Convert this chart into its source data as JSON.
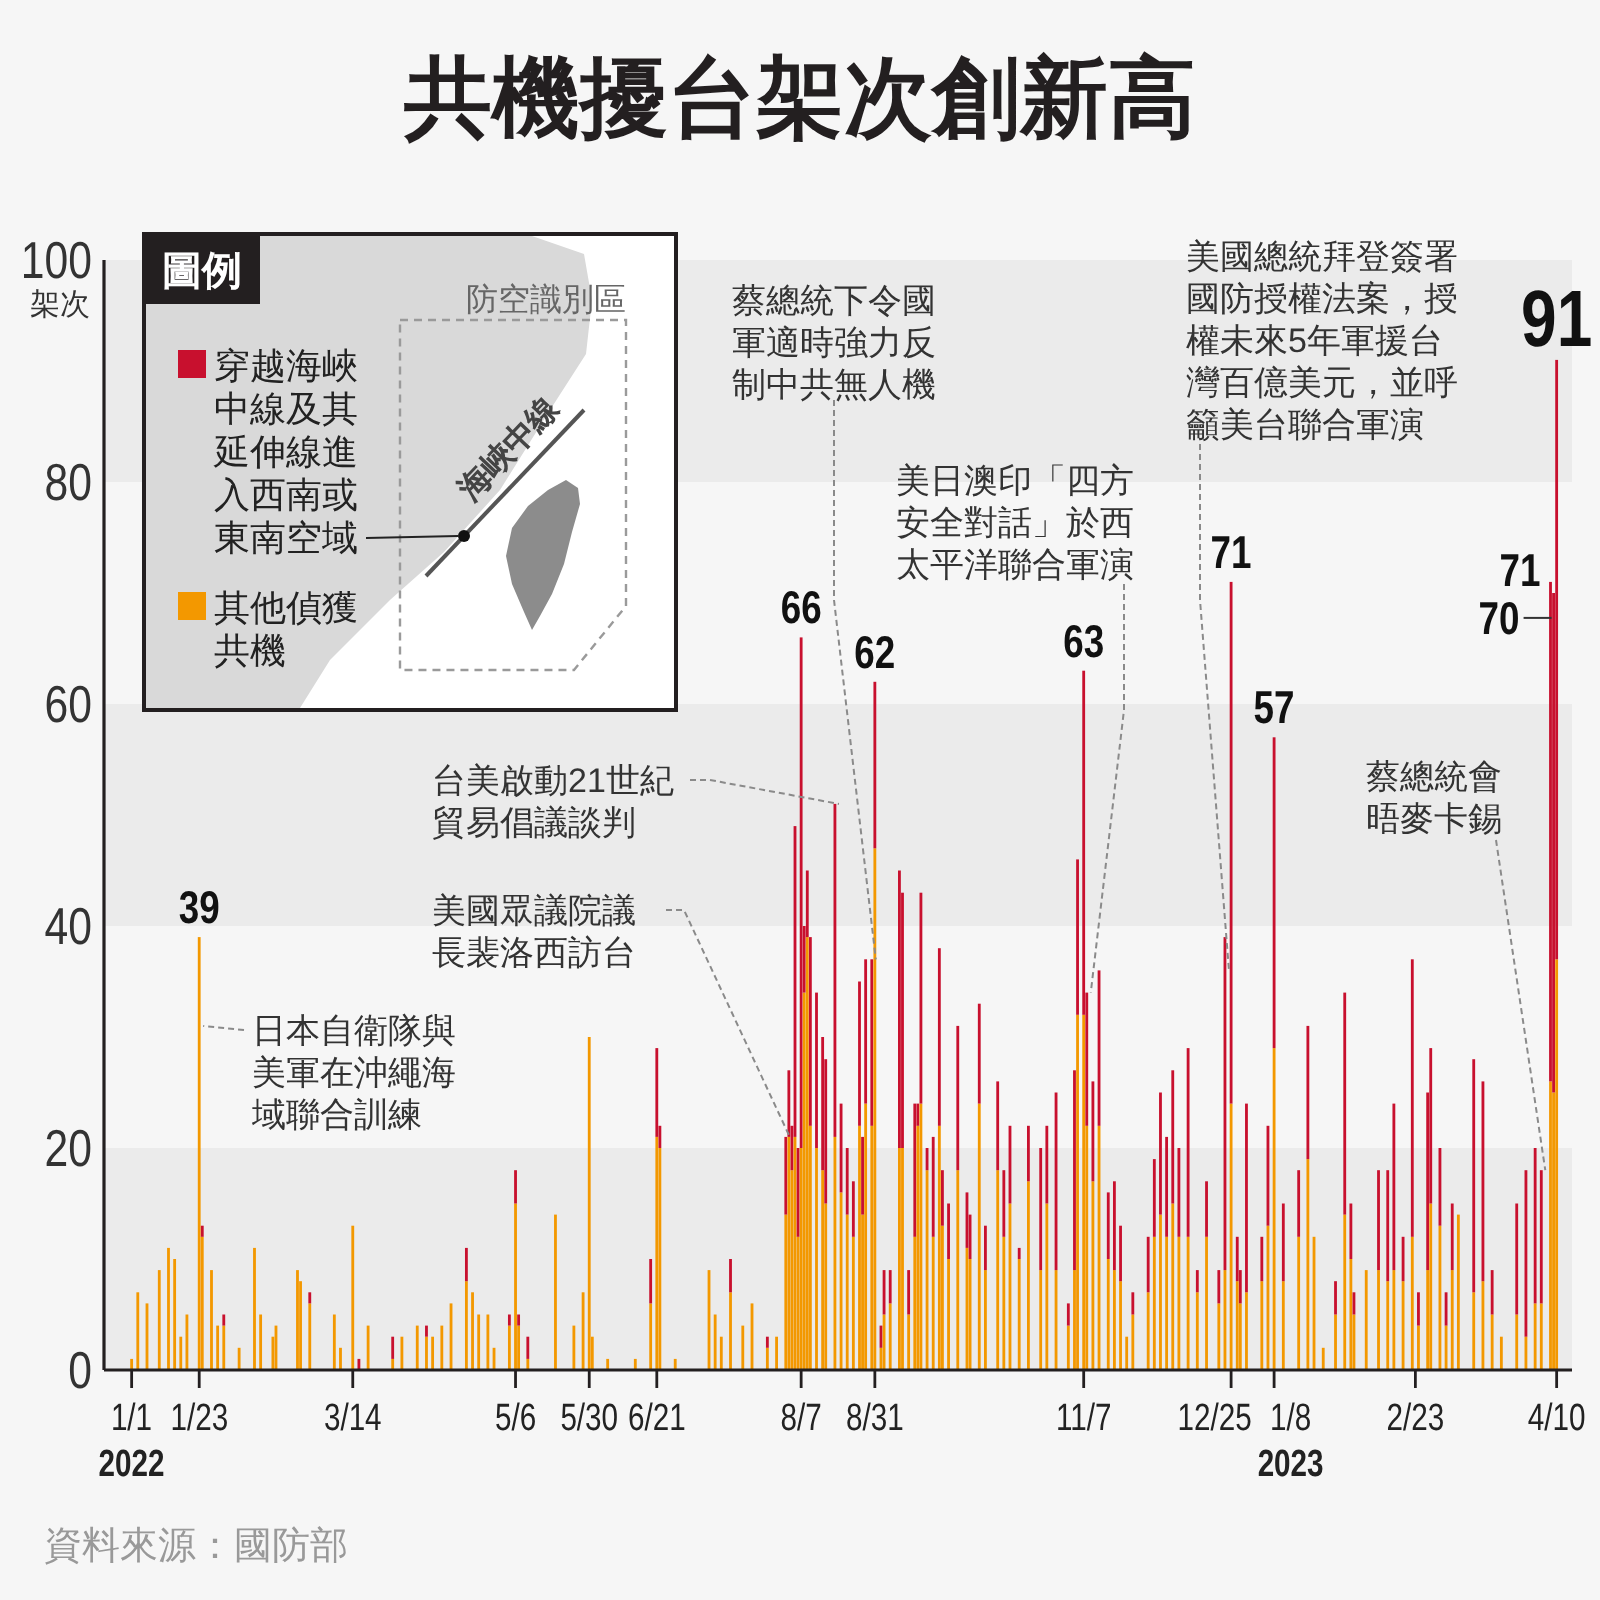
{
  "chart_data": {
    "type": "bar",
    "stacked": true,
    "title": "共機擾台架次創新高",
    "ylabel": "架次",
    "legend": "top left",
    "legend_title": "圖例",
    "xlim": [
      "2021-12-23",
      "2023-04-15"
    ],
    "ylim": [
      0,
      100
    ],
    "yticks": [
      0,
      20,
      40,
      60,
      80,
      100
    ],
    "xticks": [
      {
        "value": "2022-01-01",
        "label": "1/1\n2022"
      },
      {
        "value": "2022-01-23",
        "label": "1/23"
      },
      {
        "value": "2022-03-14",
        "label": "3/14"
      },
      {
        "value": "2022-05-06",
        "label": "5/6"
      },
      {
        "value": "2022-05-30",
        "label": "5/30"
      },
      {
        "value": "2022-06-21",
        "label": "6/21"
      },
      {
        "value": "2022-08-07",
        "label": "8/7"
      },
      {
        "value": "2022-08-31",
        "label": "8/31"
      },
      {
        "value": "2022-11-07",
        "label": "11/7"
      },
      {
        "value": "2022-12-25",
        "label": "12/25"
      },
      {
        "value": "2023-01-08",
        "label": "1/8\n2023"
      },
      {
        "value": "2023-02-23",
        "label": "2/23"
      },
      {
        "value": "2023-04-10",
        "label": "4/10"
      }
    ],
    "bands": [
      {
        "axis": "y",
        "from": 0,
        "to": 20,
        "color": "#ebebeb"
      },
      {
        "axis": "y",
        "from": 40,
        "to": 60,
        "color": "#ebebeb"
      },
      {
        "axis": "y",
        "from": 80,
        "to": 100,
        "color": "#ebebeb"
      }
    ],
    "x": [
      "2022-01-01",
      "2022-01-03",
      "2022-01-06",
      "2022-01-10",
      "2022-01-13",
      "2022-01-15",
      "2022-01-17",
      "2022-01-19",
      "2022-01-23",
      "2022-01-24",
      "2022-01-27",
      "2022-01-29",
      "2022-01-31",
      "2022-02-05",
      "2022-02-10",
      "2022-02-12",
      "2022-02-16",
      "2022-02-17",
      "2022-02-24",
      "2022-02-25",
      "2022-02-28",
      "2022-03-08",
      "2022-03-10",
      "2022-03-14",
      "2022-03-16",
      "2022-03-19",
      "2022-03-27",
      "2022-03-30",
      "2022-04-04",
      "2022-04-07",
      "2022-04-09",
      "2022-04-12",
      "2022-04-15",
      "2022-04-20",
      "2022-04-22",
      "2022-04-24",
      "2022-04-27",
      "2022-04-29",
      "2022-05-04",
      "2022-05-06",
      "2022-05-07",
      "2022-05-10",
      "2022-05-19",
      "2022-05-25",
      "2022-05-28",
      "2022-05-30",
      "2022-05-31",
      "2022-06-05",
      "2022-06-14",
      "2022-06-19",
      "2022-06-21",
      "2022-06-22",
      "2022-06-27",
      "2022-07-08",
      "2022-07-10",
      "2022-07-12",
      "2022-07-15",
      "2022-07-19",
      "2022-07-22",
      "2022-07-27",
      "2022-07-30",
      "2022-08-02",
      "2022-08-03",
      "2022-08-04",
      "2022-08-05",
      "2022-08-06",
      "2022-08-07",
      "2022-08-08",
      "2022-08-09",
      "2022-08-10",
      "2022-08-12",
      "2022-08-14",
      "2022-08-15",
      "2022-08-18",
      "2022-08-20",
      "2022-08-22",
      "2022-08-24",
      "2022-08-26",
      "2022-08-27",
      "2022-08-28",
      "2022-08-30",
      "2022-08-31",
      "2022-09-02",
      "2022-09-03",
      "2022-09-05",
      "2022-09-08",
      "2022-09-09",
      "2022-09-11",
      "2022-09-13",
      "2022-09-14",
      "2022-09-15",
      "2022-09-17",
      "2022-09-19",
      "2022-09-21",
      "2022-09-22",
      "2022-09-24",
      "2022-09-27",
      "2022-09-30",
      "2022-10-01",
      "2022-10-04",
      "2022-10-06",
      "2022-10-10",
      "2022-10-12",
      "2022-10-14",
      "2022-10-17",
      "2022-10-20",
      "2022-10-24",
      "2022-10-26",
      "2022-10-29",
      "2022-11-02",
      "2022-11-04",
      "2022-11-05",
      "2022-11-07",
      "2022-11-08",
      "2022-11-10",
      "2022-11-12",
      "2022-11-15",
      "2022-11-17",
      "2022-11-19",
      "2022-11-21",
      "2022-11-23",
      "2022-11-28",
      "2022-11-30",
      "2022-12-02",
      "2022-12-04",
      "2022-12-06",
      "2022-12-08",
      "2022-12-11",
      "2022-12-14",
      "2022-12-17",
      "2022-12-21",
      "2022-12-23",
      "2022-12-25",
      "2022-12-27",
      "2022-12-28",
      "2022-12-30",
      "2023-01-04",
      "2023-01-06",
      "2023-01-08",
      "2023-01-11",
      "2023-01-16",
      "2023-01-19",
      "2023-01-21",
      "2023-01-24",
      "2023-01-28",
      "2023-01-31",
      "2023-02-02",
      "2023-02-03",
      "2023-02-07",
      "2023-02-11",
      "2023-02-14",
      "2023-02-16",
      "2023-02-19",
      "2023-02-22",
      "2023-02-24",
      "2023-02-27",
      "2023-02-28",
      "2023-03-03",
      "2023-03-05",
      "2023-03-07",
      "2023-03-09",
      "2023-03-14",
      "2023-03-17",
      "2023-03-20",
      "2023-03-23",
      "2023-03-28",
      "2023-03-31",
      "2023-04-03",
      "2023-04-05",
      "2023-04-08",
      "2023-04-09",
      "2023-04-10"
    ],
    "series": [
      {
        "name": "其他偵獲共機",
        "color": "#f39800",
        "values": [
          1,
          7,
          6,
          9,
          11,
          10,
          3,
          5,
          39,
          12,
          9,
          4,
          4,
          2,
          11,
          5,
          3,
          4,
          9,
          8,
          6,
          5,
          2,
          13,
          null,
          4,
          1,
          3,
          4,
          3,
          3,
          4,
          6,
          8,
          7,
          5,
          5,
          2,
          4,
          15,
          4,
          1,
          14,
          4,
          7,
          30,
          3,
          1,
          1,
          6,
          21,
          20,
          1,
          9,
          5,
          3,
          7,
          4,
          6,
          2,
          3,
          14,
          21,
          18,
          21,
          12,
          20,
          34,
          39,
          22,
          20,
          18,
          15,
          21,
          16,
          14,
          12,
          22,
          14,
          24,
          22,
          47,
          2,
          5,
          6,
          20,
          20,
          5,
          12,
          22,
          24,
          18,
          12,
          22,
          13,
          10,
          18,
          11,
          10,
          24,
          9,
          18,
          12,
          15,
          10,
          17,
          9,
          15,
          9,
          4,
          9,
          32,
          32,
          22,
          17,
          22,
          10,
          9,
          8,
          3,
          5,
          7,
          12,
          14,
          12,
          15,
          12,
          12,
          7,
          12,
          6,
          9,
          24,
          8,
          6,
          7,
          8,
          13,
          29,
          8,
          12,
          19,
          12,
          2,
          5,
          14,
          10,
          5,
          9,
          9,
          8,
          9,
          8,
          12,
          4,
          9,
          15,
          13,
          4,
          9,
          14,
          7,
          8,
          5,
          3,
          5,
          3,
          6,
          6,
          26,
          25,
          37
        ]
      },
      {
        "name": "穿越海峽中線及其延伸線進入西南或東南空域",
        "color": "#c8102e",
        "values": [
          null,
          null,
          null,
          null,
          null,
          null,
          null,
          null,
          null,
          1,
          null,
          null,
          1,
          null,
          null,
          null,
          null,
          null,
          null,
          null,
          1,
          null,
          null,
          null,
          1,
          null,
          2,
          null,
          null,
          1,
          null,
          null,
          null,
          3,
          null,
          null,
          null,
          null,
          1,
          3,
          1,
          2,
          null,
          null,
          null,
          null,
          null,
          null,
          null,
          4,
          8,
          2,
          null,
          null,
          null,
          null,
          3,
          null,
          null,
          1,
          null,
          7,
          6,
          4,
          28,
          8,
          46,
          6,
          6,
          17,
          14,
          12,
          13,
          30,
          8,
          6,
          5,
          13,
          7,
          13,
          15,
          15,
          2,
          4,
          3,
          25,
          23,
          4,
          12,
          2,
          19,
          2,
          9,
          16,
          5,
          5,
          13,
          5,
          4,
          9,
          4,
          8,
          6,
          7,
          1,
          5,
          11,
          7,
          16,
          2,
          18,
          14,
          31,
          12,
          9,
          14,
          6,
          8,
          5,
          null,
          2,
          5,
          7,
          11,
          9,
          12,
          8,
          17,
          2,
          5,
          3,
          30,
          47,
          4,
          3,
          17,
          4,
          9,
          28,
          7,
          6,
          12,
          null,
          null,
          3,
          20,
          5,
          2,
          null,
          9,
          10,
          15,
          4,
          25,
          3,
          16,
          14,
          7,
          3,
          6,
          null,
          21,
          18,
          4,
          null,
          10,
          15,
          14,
          12,
          45,
          45,
          54
        ]
      }
    ],
    "totals": [
      null,
      null,
      null,
      null,
      null,
      null,
      null,
      null,
      "39",
      null,
      null,
      null,
      null,
      null,
      null,
      null,
      null,
      null,
      null,
      null,
      null,
      null,
      null,
      null,
      null,
      null,
      null,
      null,
      null,
      null,
      null,
      null,
      null,
      null,
      null,
      null,
      null,
      null,
      null,
      null,
      null,
      null,
      null,
      null,
      null,
      null,
      null,
      null,
      null,
      null,
      null,
      null,
      null,
      null,
      null,
      null,
      null,
      null,
      null,
      null,
      null,
      null,
      null,
      null,
      null,
      null,
      "66",
      null,
      null,
      null,
      null,
      null,
      null,
      null,
      null,
      null,
      null,
      null,
      null,
      null,
      null,
      "62",
      null,
      null,
      null,
      null,
      null,
      null,
      null,
      null,
      null,
      null,
      null,
      null,
      null,
      null,
      null,
      null,
      null,
      null,
      null,
      null,
      null,
      null,
      null,
      null,
      null,
      null,
      null,
      null,
      null,
      null,
      "63",
      null,
      null,
      null,
      null,
      null,
      null,
      null,
      null,
      null,
      null,
      null,
      null,
      null,
      null,
      null,
      null,
      null,
      null,
      null,
      "71",
      null,
      null,
      null,
      null,
      null,
      "57",
      null,
      null,
      null,
      null,
      null,
      null,
      null,
      null,
      null,
      null,
      null,
      null,
      null,
      null,
      null,
      null,
      null,
      null,
      null,
      null,
      null,
      null,
      null,
      null,
      null,
      null,
      null,
      null,
      null,
      null,
      "71",
      "70",
      "91"
    ],
    "annotations": [
      {
        "text": "日本自衛隊與美軍在沖繩海域聯合訓練",
        "x": "2022-01-23",
        "y": 31
      },
      {
        "text": "美國眾議院議長裴洛西訪台",
        "x": "2022-08-02",
        "y": 21
      },
      {
        "text": "台美啟動21世紀貿易倡議談判",
        "x": "2022-08-18",
        "y": 51
      },
      {
        "text": "蔡總統下令國軍適時強力反制中共無人機",
        "x": "2022-08-30",
        "y": 37
      },
      {
        "text": "美日澳印「四方安全對話」於西太平洋聯合軍演",
        "x": "2022-11-08",
        "y": 34
      },
      {
        "text": "美國總統拜登簽署國防授權法案，授權未來5年軍援台灣百億美元，並呼籲美台聯合軍演",
        "x": "2022-12-23",
        "y": 36
      },
      {
        "text": "蔡總統會晤麥卡錫",
        "x": "2023-04-05",
        "y": 18
      },
      "防空識別區",
      "海峽中線",
      "資料來源：國防部"
    ]
  }
}
